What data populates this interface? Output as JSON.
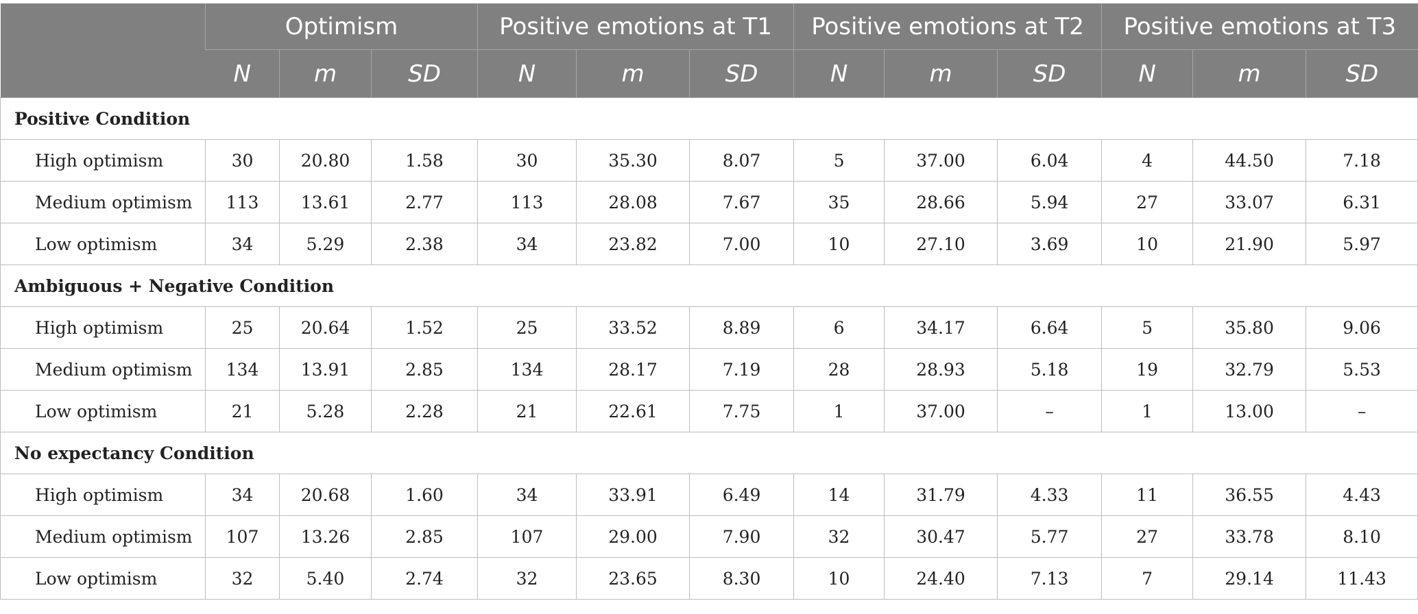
{
  "header": {
    "groups": [
      "Optimism",
      "Positive emotions at T1",
      "Positive emotions at T2",
      "Positive emotions at T3"
    ],
    "subheaders": [
      "N",
      "m",
      "SD",
      "N",
      "m",
      "SD",
      "N",
      "m",
      "SD",
      "N",
      "m",
      "SD"
    ]
  },
  "sections": [
    {
      "title": "Positive Condition",
      "rows": [
        {
          "label": "High optimism",
          "cells": [
            "30",
            "20.80",
            "1.58",
            "30",
            "35.30",
            "8.07",
            "5",
            "37.00",
            "6.04",
            "4",
            "44.50",
            "7.18"
          ]
        },
        {
          "label": "Medium optimism",
          "cells": [
            "113",
            "13.61",
            "2.77",
            "113",
            "28.08",
            "7.67",
            "35",
            "28.66",
            "5.94",
            "27",
            "33.07",
            "6.31"
          ]
        },
        {
          "label": "Low optimism",
          "cells": [
            "34",
            "5.29",
            "2.38",
            "34",
            "23.82",
            "7.00",
            "10",
            "27.10",
            "3.69",
            "10",
            "21.90",
            "5.97"
          ]
        }
      ]
    },
    {
      "title": "Ambiguous + Negative Condition",
      "rows": [
        {
          "label": "High optimism",
          "cells": [
            "25",
            "20.64",
            "1.52",
            "25",
            "33.52",
            "8.89",
            "6",
            "34.17",
            "6.64",
            "5",
            "35.80",
            "9.06"
          ]
        },
        {
          "label": "Medium optimism",
          "cells": [
            "134",
            "13.91",
            "2.85",
            "134",
            "28.17",
            "7.19",
            "28",
            "28.93",
            "5.18",
            "19",
            "32.79",
            "5.53"
          ]
        },
        {
          "label": "Low optimism",
          "cells": [
            "21",
            "5.28",
            "2.28",
            "21",
            "22.61",
            "7.75",
            "1",
            "37.00",
            "–",
            "1",
            "13.00",
            "–"
          ]
        }
      ]
    },
    {
      "title": "No expectancy Condition",
      "rows": [
        {
          "label": "High optimism",
          "cells": [
            "34",
            "20.68",
            "1.60",
            "34",
            "33.91",
            "6.49",
            "14",
            "31.79",
            "4.33",
            "11",
            "36.55",
            "4.43"
          ]
        },
        {
          "label": "Medium optimism",
          "cells": [
            "107",
            "13.26",
            "2.85",
            "107",
            "29.00",
            "7.90",
            "32",
            "30.47",
            "5.77",
            "27",
            "33.78",
            "8.10"
          ]
        },
        {
          "label": "Low optimism",
          "cells": [
            "32",
            "5.40",
            "2.74",
            "32",
            "23.65",
            "8.30",
            "10",
            "24.40",
            "7.13",
            "7",
            "29.14",
            "11.43"
          ]
        }
      ]
    }
  ]
}
